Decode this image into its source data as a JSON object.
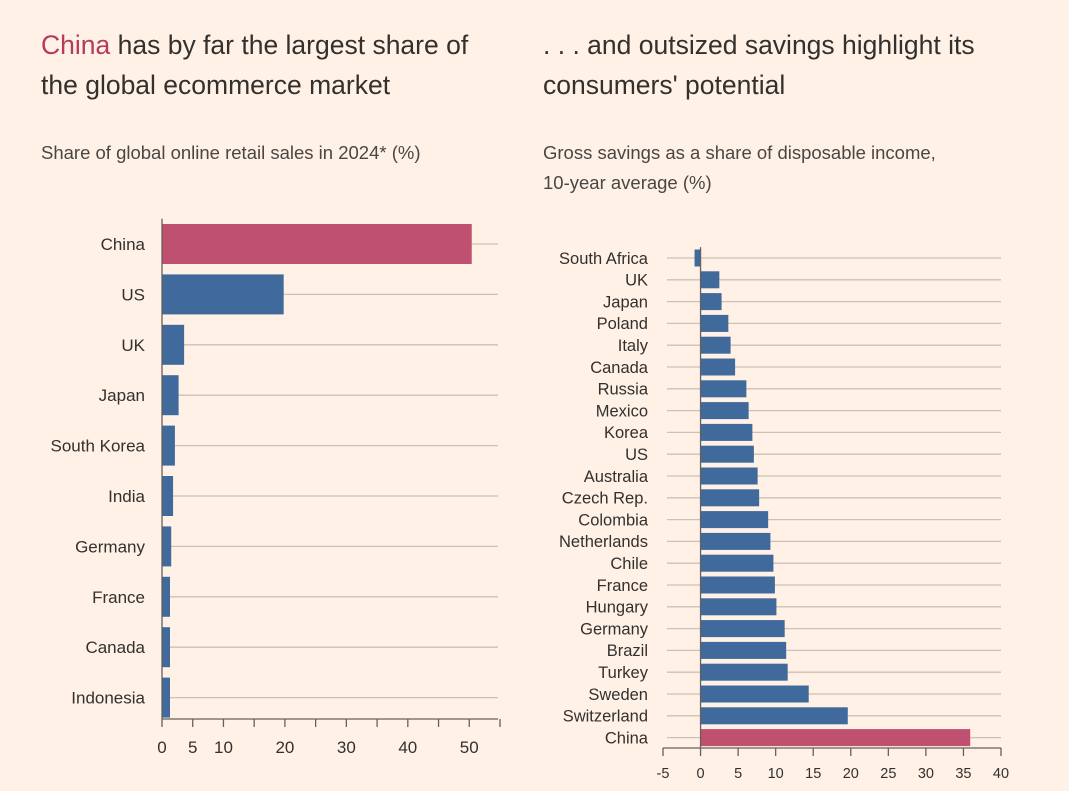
{
  "colors": {
    "background": "#fff1e5",
    "highlight": "#c0506f",
    "bar": "#406a9b",
    "grid": "#ccc1b7",
    "axis": "#66605c",
    "text": "#33302e"
  },
  "left": {
    "title_highlight": "China",
    "title_rest": " has by far the largest share of the global ecommerce market",
    "subtitle": "Share of global online retail sales in 2024* (%)"
  },
  "right": {
    "title": ". . . and outsized savings highlight its consumers' potential",
    "subtitle_line1": "Gross savings as a share of disposable income,",
    "subtitle_line2": "10-year average (%)"
  },
  "chart_data": [
    {
      "type": "bar",
      "orientation": "horizontal",
      "title": "China has by far the largest share of the global ecommerce market",
      "subtitle": "Share of global online retail sales in 2024* (%)",
      "categories": [
        "China",
        "US",
        "UK",
        "Japan",
        "South Korea",
        "India",
        "Germany",
        "France",
        "Canada",
        "Indonesia"
      ],
      "values": [
        50.4,
        19.8,
        3.6,
        2.7,
        2.1,
        1.8,
        1.5,
        1.3,
        1.3,
        1.3
      ],
      "highlight": [
        "China"
      ],
      "xlim": [
        0,
        55
      ],
      "xticks": [
        0,
        5,
        10,
        20,
        30,
        40,
        50
      ],
      "xtick_labels": [
        "0",
        "5",
        "10",
        "20",
        "30",
        "40",
        "50"
      ],
      "grid": true
    },
    {
      "type": "bar",
      "orientation": "horizontal",
      "title": ". . . and outsized savings highlight its consumers' potential",
      "subtitle": "Gross savings as a share of disposable income, 10-year average (%)",
      "categories": [
        "South Africa",
        "UK",
        "Japan",
        "Poland",
        "Italy",
        "Canada",
        "Russia",
        "Mexico",
        "Korea",
        "US",
        "Australia",
        "Czech Rep.",
        "Colombia",
        "Netherlands",
        "Chile",
        "France",
        "Hungary",
        "Germany",
        "Brazil",
        "Turkey",
        "Sweden",
        "Switzerland",
        "China"
      ],
      "values": [
        -0.8,
        2.5,
        2.8,
        3.7,
        4.0,
        4.6,
        6.1,
        6.4,
        6.9,
        7.1,
        7.6,
        7.8,
        9.0,
        9.3,
        9.7,
        9.9,
        10.1,
        11.2,
        11.4,
        11.6,
        14.4,
        19.6,
        35.9
      ],
      "highlight": [
        "China"
      ],
      "xlim": [
        -5,
        40
      ],
      "xticks": [
        -5,
        0,
        5,
        10,
        15,
        20,
        25,
        30,
        35,
        40
      ],
      "xtick_labels": [
        "-5",
        "0",
        "5",
        "10",
        "15",
        "20",
        "25",
        "30",
        "35",
        "40"
      ],
      "grid": true
    }
  ]
}
